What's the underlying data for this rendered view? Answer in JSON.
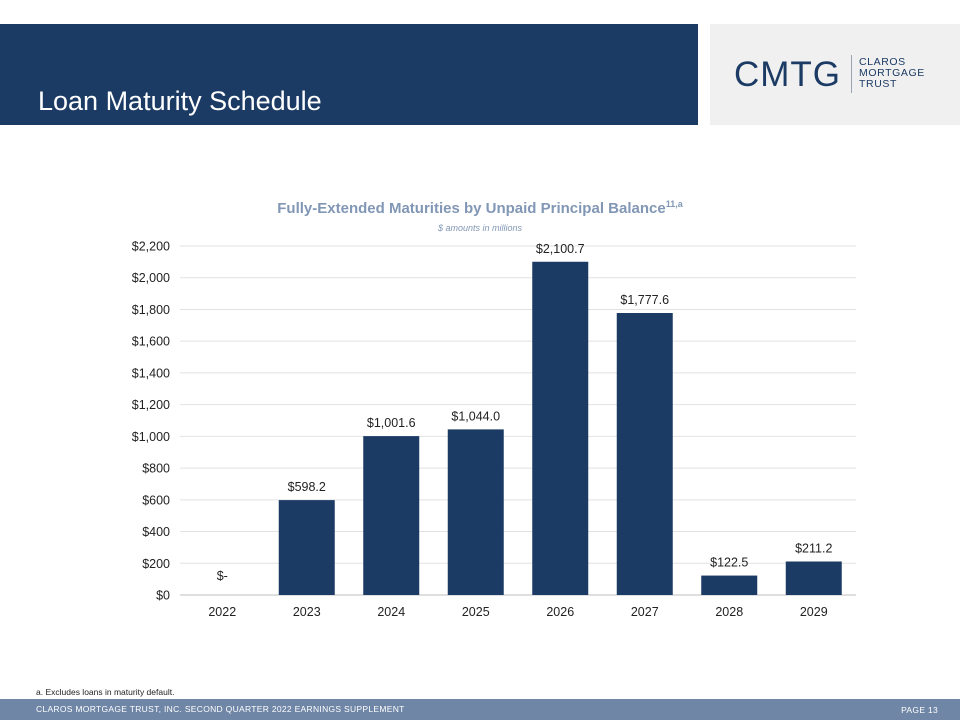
{
  "header": {
    "title": "Loan Maturity Schedule"
  },
  "logo": {
    "mark": "CMTG",
    "words": [
      "CLAROS",
      "MORTGAGE",
      "TRUST"
    ]
  },
  "chart_data": {
    "type": "bar",
    "title": "Fully-Extended Maturities by Unpaid Principal Balance",
    "title_superscript": "11,a",
    "subtitle": "$ amounts in millions",
    "xlabel": "",
    "ylabel": "",
    "categories": [
      "2022",
      "2023",
      "2024",
      "2025",
      "2026",
      "2027",
      "2028",
      "2029"
    ],
    "values": [
      0,
      598.2,
      1001.6,
      1044.0,
      2100.7,
      1777.6,
      122.5,
      211.2
    ],
    "data_labels": [
      "$-",
      "$598.2",
      "$1,001.6",
      "$1,044.0",
      "$2,100.7",
      "$1,777.6",
      "$122.5",
      "$211.2"
    ],
    "ylim": [
      0,
      2200
    ],
    "yticks": [
      0,
      200,
      400,
      600,
      800,
      1000,
      1200,
      1400,
      1600,
      1800,
      2000,
      2200
    ],
    "ytick_labels": [
      "$0",
      "$200",
      "$400",
      "$600",
      "$800",
      "$1,000",
      "$1,200",
      "$1,400",
      "$1,600",
      "$1,800",
      "$2,000",
      "$2,200"
    ],
    "grid": true,
    "bar_color": "#1c3b64"
  },
  "footnote": "a. Excludes loans in maturity default.",
  "footer": {
    "left": "CLAROS MORTGAGE TRUST, INC. SECOND QUARTER 2022 EARNINGS SUPPLEMENT",
    "page": "PAGE 13"
  },
  "colors": {
    "brand_navy": "#1c3b64",
    "accent_light": "#8197b5",
    "footer": "#6f86a6",
    "logo_bg": "#f0f0f0"
  }
}
